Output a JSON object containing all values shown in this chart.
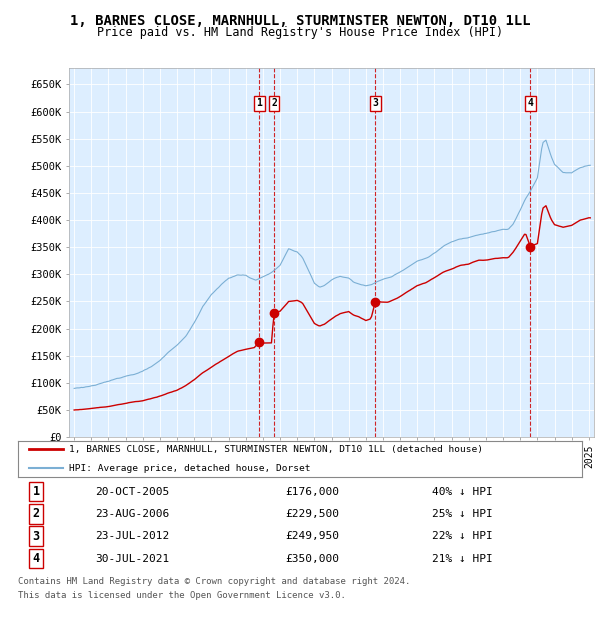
{
  "title": "1, BARNES CLOSE, MARNHULL, STURMINSTER NEWTON, DT10 1LL",
  "subtitle": "Price paid vs. HM Land Registry's House Price Index (HPI)",
  "title_fontsize": 10,
  "subtitle_fontsize": 8.5,
  "bg_color": "#ddeeff",
  "ylim": [
    0,
    680000
  ],
  "yticks": [
    0,
    50000,
    100000,
    150000,
    200000,
    250000,
    300000,
    350000,
    400000,
    450000,
    500000,
    550000,
    600000,
    650000
  ],
  "ytick_labels": [
    "£0",
    "£50K",
    "£100K",
    "£150K",
    "£200K",
    "£250K",
    "£300K",
    "£350K",
    "£400K",
    "£450K",
    "£500K",
    "£550K",
    "£600K",
    "£650K"
  ],
  "sales": [
    {
      "date": 2005.8,
      "price": 176000,
      "label": "1"
    },
    {
      "date": 2006.65,
      "price": 229500,
      "label": "2"
    },
    {
      "date": 2012.56,
      "price": 249950,
      "label": "3"
    },
    {
      "date": 2021.58,
      "price": 350000,
      "label": "4"
    }
  ],
  "sale_dates_text": [
    "20-OCT-2005",
    "23-AUG-2006",
    "23-JUL-2012",
    "30-JUL-2021"
  ],
  "sale_prices_text": [
    "£176,000",
    "£229,500",
    "£249,950",
    "£350,000"
  ],
  "sale_hpi_text": [
    "40% ↓ HPI",
    "25% ↓ HPI",
    "22% ↓ HPI",
    "21% ↓ HPI"
  ],
  "legend_line1": "1, BARNES CLOSE, MARNHULL, STURMINSTER NEWTON, DT10 1LL (detached house)",
  "legend_line2": "HPI: Average price, detached house, Dorset",
  "line_color_red": "#cc0000",
  "line_color_blue": "#7bafd4",
  "footer_line1": "Contains HM Land Registry data © Crown copyright and database right 2024.",
  "footer_line2": "This data is licensed under the Open Government Licence v3.0."
}
